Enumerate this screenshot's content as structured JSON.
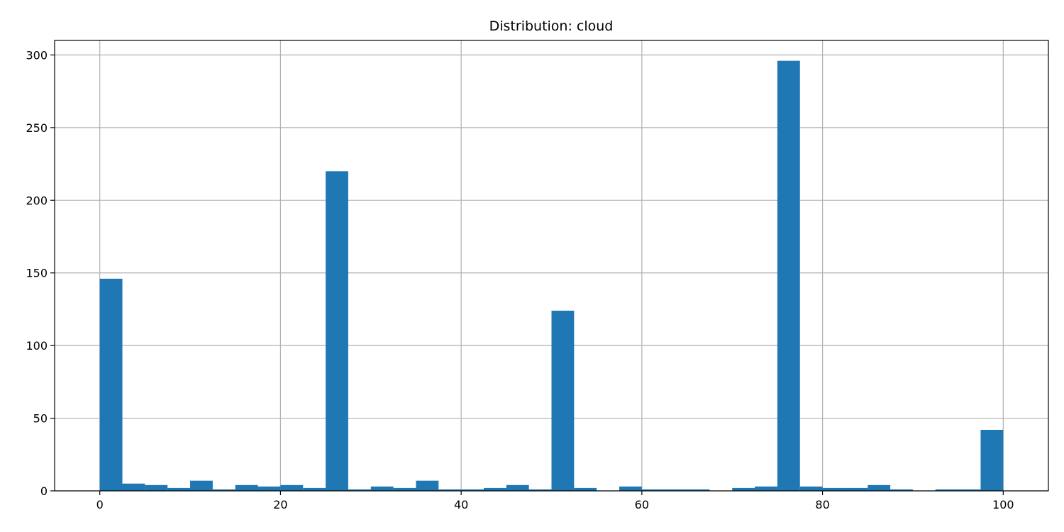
{
  "chart_data": {
    "type": "bar",
    "title": "Distribution: cloud",
    "xlabel": "",
    "ylabel": "",
    "xlim": [
      -5,
      105
    ],
    "ylim": [
      0,
      310
    ],
    "x_ticks": [
      0,
      20,
      40,
      60,
      80,
      100
    ],
    "y_ticks": [
      0,
      50,
      100,
      150,
      200,
      250,
      300
    ],
    "grid": true,
    "bar_color": "#1f77b4",
    "grid_color": "#b0b0b0",
    "bin_width": 2.5,
    "bins": [
      {
        "x0": 0.0,
        "count": 146
      },
      {
        "x0": 2.5,
        "count": 5
      },
      {
        "x0": 5.0,
        "count": 4
      },
      {
        "x0": 7.5,
        "count": 2
      },
      {
        "x0": 10.0,
        "count": 7
      },
      {
        "x0": 12.5,
        "count": 1
      },
      {
        "x0": 15.0,
        "count": 4
      },
      {
        "x0": 17.5,
        "count": 3
      },
      {
        "x0": 20.0,
        "count": 4
      },
      {
        "x0": 22.5,
        "count": 2
      },
      {
        "x0": 25.0,
        "count": 220
      },
      {
        "x0": 27.5,
        "count": 1
      },
      {
        "x0": 30.0,
        "count": 3
      },
      {
        "x0": 32.5,
        "count": 2
      },
      {
        "x0": 35.0,
        "count": 7
      },
      {
        "x0": 37.5,
        "count": 1
      },
      {
        "x0": 40.0,
        "count": 1
      },
      {
        "x0": 42.5,
        "count": 2
      },
      {
        "x0": 45.0,
        "count": 4
      },
      {
        "x0": 47.5,
        "count": 1
      },
      {
        "x0": 50.0,
        "count": 124
      },
      {
        "x0": 52.5,
        "count": 2
      },
      {
        "x0": 55.0,
        "count": 0
      },
      {
        "x0": 57.5,
        "count": 3
      },
      {
        "x0": 60.0,
        "count": 1
      },
      {
        "x0": 62.5,
        "count": 1
      },
      {
        "x0": 65.0,
        "count": 1
      },
      {
        "x0": 67.5,
        "count": 0
      },
      {
        "x0": 70.0,
        "count": 2
      },
      {
        "x0": 72.5,
        "count": 3
      },
      {
        "x0": 75.0,
        "count": 296
      },
      {
        "x0": 77.5,
        "count": 3
      },
      {
        "x0": 80.0,
        "count": 2
      },
      {
        "x0": 82.5,
        "count": 2
      },
      {
        "x0": 85.0,
        "count": 4
      },
      {
        "x0": 87.5,
        "count": 1
      },
      {
        "x0": 90.0,
        "count": 0
      },
      {
        "x0": 92.5,
        "count": 1
      },
      {
        "x0": 95.0,
        "count": 1
      },
      {
        "x0": 97.5,
        "count": 42
      }
    ]
  }
}
